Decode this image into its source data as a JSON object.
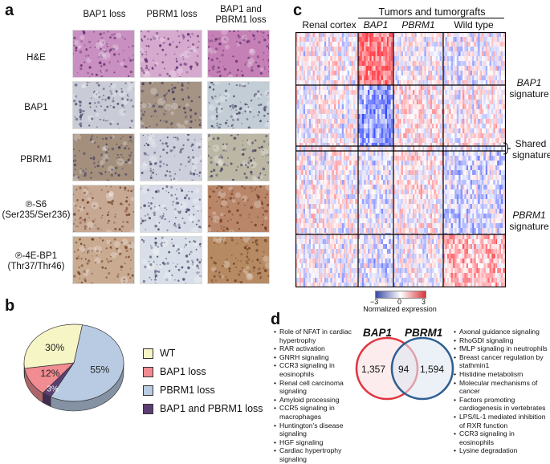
{
  "panel_a": {
    "label": "a",
    "columns": [
      "BAP1 loss",
      "PBRM1 loss",
      "BAP1 and PBRM1 loss"
    ],
    "rows": [
      {
        "label": "H&E",
        "sub": ""
      },
      {
        "label": "BAP1",
        "sub": ""
      },
      {
        "label": "PBRM1",
        "sub": ""
      },
      {
        "label": "℗-S6",
        "sub": "(Ser235/Ser236)"
      },
      {
        "label": "℗-4E-BP1",
        "sub": "(Thr37/Thr46)"
      }
    ],
    "tile_colors": [
      [
        "#c98fc0",
        "#d6a9cf",
        "#c581b6"
      ],
      [
        "#c9ccd6",
        "#a59384",
        "#c3cdd6"
      ],
      [
        "#a48f7c",
        "#cdd0dc",
        "#bbb7a4"
      ],
      [
        "#c6a893",
        "#d7dbe7",
        "#b9866a"
      ],
      [
        "#c9ab92",
        "#d9dfe9",
        "#b68a63"
      ]
    ]
  },
  "panel_b": {
    "label": "b",
    "legend": [
      {
        "label": "WT",
        "color": "#f6f5c6"
      },
      {
        "label": "BAP1 loss",
        "color": "#f08c92"
      },
      {
        "label": "PBRM1 loss",
        "color": "#b9cbe3"
      },
      {
        "label": "BAP1 and PBRM1 loss",
        "color": "#5c3f72"
      }
    ]
  },
  "chart_data": {
    "type": "pie",
    "categories": [
      "PBRM1 loss",
      "BAP1 and PBRM1 loss",
      "BAP1 loss",
      "WT"
    ],
    "values": [
      55,
      3,
      12,
      30
    ],
    "labels": [
      "55%",
      "3%",
      "12%",
      "30%"
    ],
    "colors": [
      "#b9cbe3",
      "#5c3f72",
      "#f08c92",
      "#f6f5c6"
    ]
  },
  "panel_c": {
    "label": "c",
    "header_group": "Tumors and tumorgrafts",
    "columns": [
      "Renal cortex",
      "BAP1",
      "PBRM1",
      "Wild type"
    ],
    "signatures": [
      {
        "line1": "BAP1",
        "line2": "signature"
      },
      {
        "line1": "Shared",
        "line2": "signature"
      },
      {
        "line1": "PBRM1",
        "line2": "signature"
      }
    ],
    "colorbar": {
      "min": "−3",
      "mid": "0",
      "max": "3",
      "title": "Normalized expression"
    }
  },
  "panel_d": {
    "label": "d",
    "left_title": "BAP1",
    "right_title": "PBRM1",
    "left_count": "1,357",
    "overlap_count": "94",
    "right_count": "1,594",
    "left_color": "#e0363f",
    "right_color": "#2f5f93",
    "left_list": [
      "Role of NFAT in cardiac hypertrophy",
      "RAR activation",
      "GNRH signaling",
      "CCR3 signaling in eosinophils",
      "Renal cell carcinoma signaling",
      "Amyloid processing",
      "CCR5 signaling in macrophages",
      "Huntington's disease signaling",
      "HGF signaling",
      "Cardiac hypertrophy signaling"
    ],
    "right_list": [
      "Axonal guidance signaling",
      "RhoGDI signaling",
      "fMLP signaling in neutrophils",
      "Breast cancer regulation by stathmin1",
      "Histidine metabolism",
      "Molecular mechanisms of cancer",
      "Factors promoting cardiogenesis in vertebrates",
      "LPS/IL-1 mediated inhibition of RXR function",
      "CCR3 signaling in eosinophils",
      "Lysine degradation"
    ]
  }
}
